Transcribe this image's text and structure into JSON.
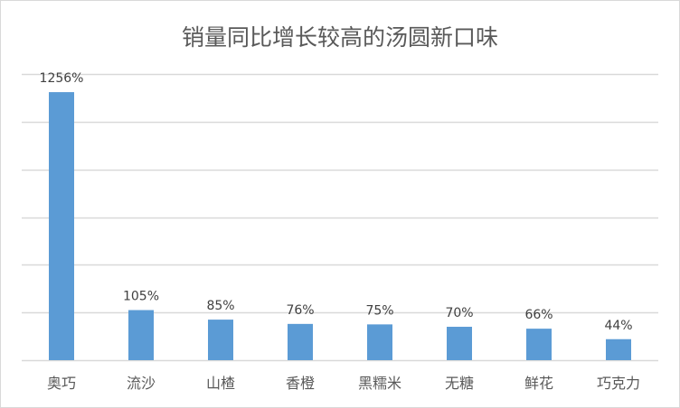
{
  "chart_data": {
    "type": "bar",
    "title": "销量同比增长较高的汤圆新口味",
    "categories": [
      "奥巧",
      "流沙",
      "山楂",
      "香橙",
      "黑糯米",
      "无糖",
      "鲜花",
      "巧克力"
    ],
    "values": [
      1256,
      105,
      85,
      76,
      75,
      70,
      66,
      44
    ],
    "data_labels": [
      "1256%",
      "105%",
      "85%",
      "76%",
      "75%",
      "70%",
      "66%",
      "44%"
    ],
    "bar_heights_as_drawn": [
      562,
      105,
      85,
      76,
      75,
      70,
      66,
      44
    ],
    "ylim": [
      0,
      600
    ],
    "gridline_step": 100,
    "grid": true,
    "y_axis_labels_shown": false,
    "legend": "none",
    "bar_color": "#5b9bd5",
    "gridline_color": "#d9d9d9",
    "text_color": "#595959"
  }
}
